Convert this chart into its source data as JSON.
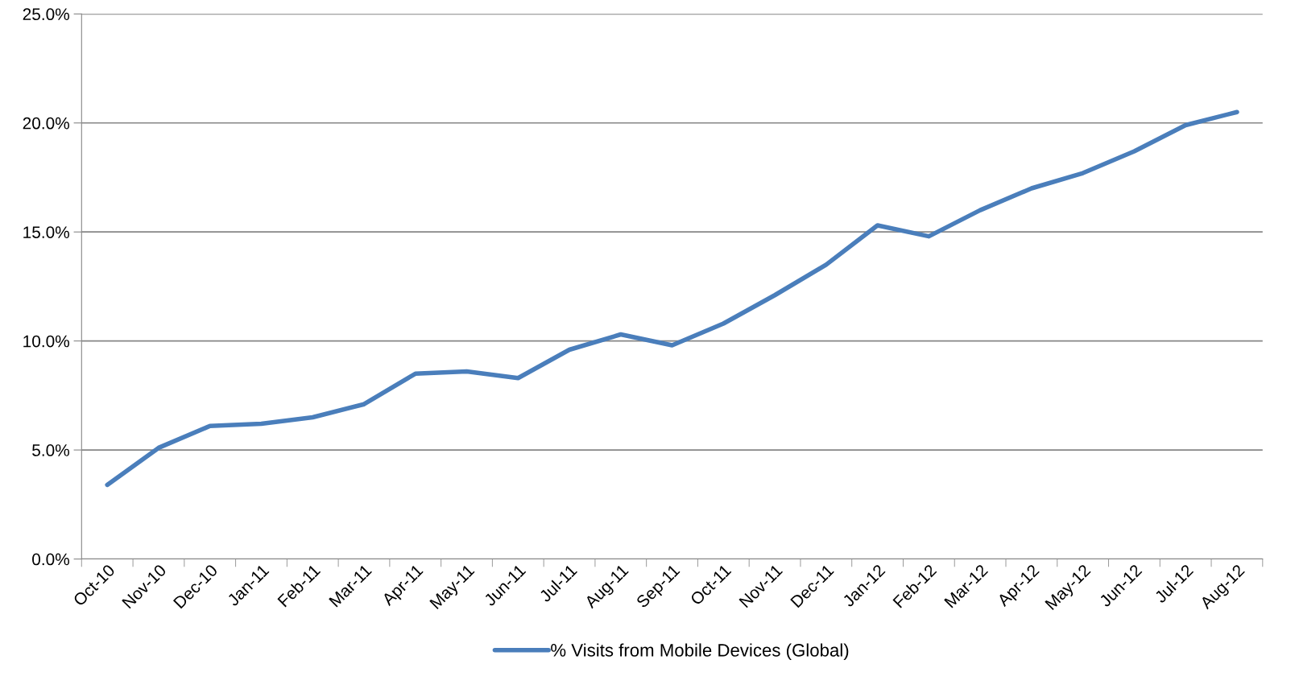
{
  "chart_data": {
    "type": "line",
    "categories": [
      "Oct-10",
      "Nov-10",
      "Dec-10",
      "Jan-11",
      "Feb-11",
      "Mar-11",
      "Apr-11",
      "May-11",
      "Jun-11",
      "Jul-11",
      "Aug-11",
      "Sep-11",
      "Oct-11",
      "Nov-11",
      "Dec-11",
      "Jan-12",
      "Feb-12",
      "Mar-12",
      "Apr-12",
      "May-12",
      "Jun-12",
      "Jul-12",
      "Aug-12"
    ],
    "series": [
      {
        "name": "% Visits from Mobile Devices (Global)",
        "color": "#4a7ebb",
        "values": [
          3.4,
          5.1,
          6.1,
          6.2,
          6.5,
          7.1,
          8.5,
          8.6,
          8.3,
          9.6,
          10.3,
          9.8,
          10.8,
          12.1,
          13.5,
          15.3,
          14.8,
          16.0,
          17.0,
          17.7,
          18.7,
          19.9,
          20.5
        ]
      }
    ],
    "ylim": [
      0,
      25
    ],
    "yticks": [
      {
        "value": 0,
        "label": "0.0%"
      },
      {
        "value": 5,
        "label": "5.0%"
      },
      {
        "value": 10,
        "label": "10.0%"
      },
      {
        "value": 15,
        "label": "15.0%"
      },
      {
        "value": 20,
        "label": "20.0%"
      },
      {
        "value": 25,
        "label": "25.0%"
      }
    ],
    "grid": "y",
    "legend": "bottom",
    "marker": "none",
    "line_style": "solid"
  }
}
